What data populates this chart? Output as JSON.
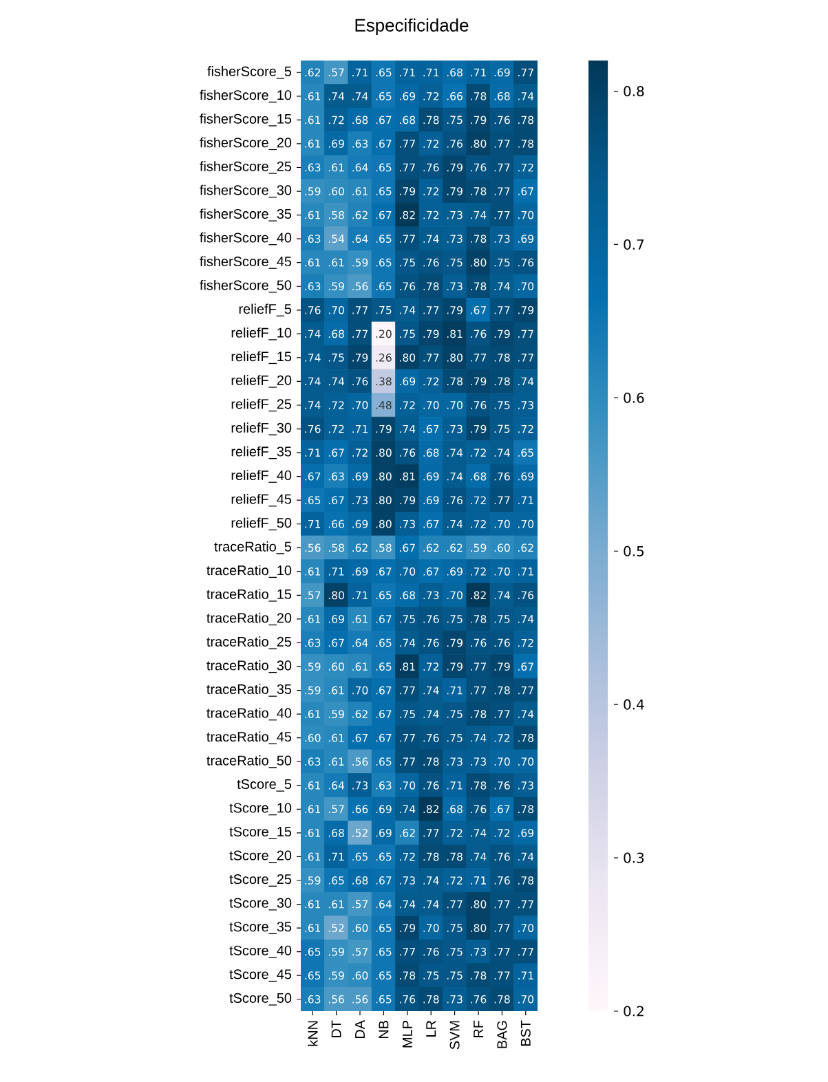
{
  "chart_data": {
    "type": "heatmap",
    "title": "Especificidade",
    "categories": [
      "kNN",
      "DT",
      "DA",
      "NB",
      "MLP",
      "LR",
      "SVM",
      "RF",
      "BAG",
      "BST"
    ],
    "y_categories": [
      "fisherScore_5",
      "fisherScore_10",
      "fisherScore_15",
      "fisherScore_20",
      "fisherScore_25",
      "fisherScore_30",
      "fisherScore_35",
      "fisherScore_40",
      "fisherScore_45",
      "fisherScore_50",
      "reliefF_5",
      "reliefF_10",
      "reliefF_15",
      "reliefF_20",
      "reliefF_25",
      "reliefF_30",
      "reliefF_35",
      "reliefF_40",
      "reliefF_45",
      "reliefF_50",
      "traceRatio_5",
      "traceRatio_10",
      "traceRatio_15",
      "traceRatio_20",
      "traceRatio_25",
      "traceRatio_30",
      "traceRatio_35",
      "traceRatio_40",
      "traceRatio_45",
      "traceRatio_50",
      "tScore_5",
      "tScore_10",
      "tScore_15",
      "tScore_20",
      "tScore_25",
      "tScore_30",
      "tScore_35",
      "tScore_40",
      "tScore_45",
      "tScore_50"
    ],
    "cells": [
      [
        0.62,
        0.57,
        0.71,
        0.65,
        0.71,
        0.71,
        0.68,
        0.71,
        0.69,
        0.77
      ],
      [
        0.61,
        0.74,
        0.74,
        0.65,
        0.69,
        0.72,
        0.66,
        0.78,
        0.68,
        0.74
      ],
      [
        0.61,
        0.72,
        0.68,
        0.67,
        0.68,
        0.78,
        0.75,
        0.79,
        0.76,
        0.78
      ],
      [
        0.61,
        0.69,
        0.63,
        0.67,
        0.77,
        0.72,
        0.76,
        0.8,
        0.77,
        0.78
      ],
      [
        0.63,
        0.61,
        0.64,
        0.65,
        0.77,
        0.76,
        0.79,
        0.76,
        0.77,
        0.72
      ],
      [
        0.59,
        0.6,
        0.61,
        0.65,
        0.79,
        0.72,
        0.79,
        0.78,
        0.77,
        0.67
      ],
      [
        0.61,
        0.58,
        0.62,
        0.67,
        0.82,
        0.72,
        0.73,
        0.74,
        0.77,
        0.7
      ],
      [
        0.63,
        0.54,
        0.64,
        0.65,
        0.77,
        0.74,
        0.73,
        0.78,
        0.73,
        0.69
      ],
      [
        0.61,
        0.61,
        0.59,
        0.65,
        0.75,
        0.76,
        0.75,
        0.8,
        0.75,
        0.76
      ],
      [
        0.63,
        0.59,
        0.56,
        0.65,
        0.76,
        0.78,
        0.73,
        0.78,
        0.74,
        0.7
      ],
      [
        0.76,
        0.7,
        0.77,
        0.75,
        0.74,
        0.77,
        0.79,
        0.67,
        0.77,
        0.79
      ],
      [
        0.74,
        0.68,
        0.77,
        0.2,
        0.75,
        0.79,
        0.81,
        0.76,
        0.79,
        0.77
      ],
      [
        0.74,
        0.75,
        0.79,
        0.26,
        0.8,
        0.77,
        0.8,
        0.77,
        0.78,
        0.77
      ],
      [
        0.74,
        0.74,
        0.76,
        0.38,
        0.69,
        0.72,
        0.78,
        0.79,
        0.78,
        0.74
      ],
      [
        0.74,
        0.72,
        0.7,
        0.48,
        0.72,
        0.7,
        0.7,
        0.76,
        0.75,
        0.73
      ],
      [
        0.76,
        0.72,
        0.71,
        0.79,
        0.74,
        0.67,
        0.73,
        0.79,
        0.75,
        0.72
      ],
      [
        0.71,
        0.67,
        0.72,
        0.8,
        0.76,
        0.68,
        0.74,
        0.72,
        0.74,
        0.65
      ],
      [
        0.67,
        0.63,
        0.69,
        0.8,
        0.81,
        0.69,
        0.74,
        0.68,
        0.76,
        0.69
      ],
      [
        0.65,
        0.67,
        0.73,
        0.8,
        0.79,
        0.69,
        0.76,
        0.72,
        0.77,
        0.71
      ],
      [
        0.71,
        0.66,
        0.69,
        0.8,
        0.73,
        0.67,
        0.74,
        0.72,
        0.7,
        0.7
      ],
      [
        0.56,
        0.58,
        0.62,
        0.58,
        0.67,
        0.62,
        0.62,
        0.59,
        0.6,
        0.62
      ],
      [
        0.61,
        0.71,
        0.69,
        0.67,
        0.7,
        0.67,
        0.69,
        0.72,
        0.7,
        0.71
      ],
      [
        0.57,
        0.8,
        0.71,
        0.65,
        0.68,
        0.73,
        0.7,
        0.82,
        0.74,
        0.76
      ],
      [
        0.61,
        0.69,
        0.61,
        0.67,
        0.75,
        0.76,
        0.75,
        0.78,
        0.75,
        0.74
      ],
      [
        0.63,
        0.67,
        0.64,
        0.65,
        0.74,
        0.76,
        0.79,
        0.76,
        0.76,
        0.72
      ],
      [
        0.59,
        0.6,
        0.61,
        0.65,
        0.81,
        0.72,
        0.79,
        0.77,
        0.79,
        0.67
      ],
      [
        0.59,
        0.61,
        0.7,
        0.67,
        0.77,
        0.74,
        0.71,
        0.77,
        0.78,
        0.77
      ],
      [
        0.61,
        0.59,
        0.62,
        0.67,
        0.75,
        0.74,
        0.75,
        0.78,
        0.77,
        0.74
      ],
      [
        0.6,
        0.61,
        0.67,
        0.67,
        0.77,
        0.76,
        0.75,
        0.74,
        0.72,
        0.78
      ],
      [
        0.63,
        0.61,
        0.56,
        0.65,
        0.77,
        0.78,
        0.73,
        0.73,
        0.7,
        0.7
      ],
      [
        0.61,
        0.64,
        0.73,
        0.63,
        0.7,
        0.76,
        0.71,
        0.78,
        0.76,
        0.73
      ],
      [
        0.61,
        0.57,
        0.66,
        0.69,
        0.74,
        0.82,
        0.68,
        0.76,
        0.67,
        0.78
      ],
      [
        0.61,
        0.68,
        0.52,
        0.69,
        0.62,
        0.77,
        0.72,
        0.74,
        0.72,
        0.69
      ],
      [
        0.61,
        0.71,
        0.65,
        0.65,
        0.72,
        0.78,
        0.78,
        0.74,
        0.76,
        0.74
      ],
      [
        0.59,
        0.65,
        0.68,
        0.67,
        0.73,
        0.74,
        0.72,
        0.71,
        0.76,
        0.78
      ],
      [
        0.61,
        0.61,
        0.57,
        0.64,
        0.74,
        0.74,
        0.77,
        0.8,
        0.77,
        0.77
      ],
      [
        0.61,
        0.52,
        0.6,
        0.65,
        0.79,
        0.7,
        0.75,
        0.8,
        0.77,
        0.7
      ],
      [
        0.65,
        0.59,
        0.57,
        0.65,
        0.77,
        0.76,
        0.75,
        0.73,
        0.77,
        0.77
      ],
      [
        0.65,
        0.59,
        0.6,
        0.65,
        0.78,
        0.75,
        0.75,
        0.78,
        0.77,
        0.71
      ],
      [
        0.63,
        0.56,
        0.56,
        0.65,
        0.76,
        0.78,
        0.73,
        0.76,
        0.78,
        0.7
      ]
    ],
    "cell_labels": [
      [
        ".62",
        ".57",
        ".71",
        ".65",
        ".71",
        ".71",
        ".68",
        ".71",
        ".69",
        ".77"
      ],
      [
        ".61",
        ".74",
        ".74",
        ".65",
        ".69",
        ".72",
        ".66",
        ".78",
        ".68",
        ".74"
      ],
      [
        ".61",
        ".72",
        ".68",
        ".67",
        ".68",
        ".78",
        ".75",
        ".79",
        ".76",
        ".78"
      ],
      [
        ".61",
        ".69",
        ".63",
        ".67",
        ".77",
        ".72",
        ".76",
        ".80",
        ".77",
        ".78"
      ],
      [
        ".63",
        ".61",
        ".64",
        ".65",
        ".77",
        ".76",
        ".79",
        ".76",
        ".77",
        ".72"
      ],
      [
        ".59",
        ".60",
        ".61",
        ".65",
        ".79",
        ".72",
        ".79",
        ".78",
        ".77",
        ".67"
      ],
      [
        ".61",
        ".58",
        ".62",
        ".67",
        ".82",
        ".72",
        ".73",
        ".74",
        ".77",
        ".70"
      ],
      [
        ".63",
        ".54",
        ".64",
        ".65",
        ".77",
        ".74",
        ".73",
        ".78",
        ".73",
        ".69"
      ],
      [
        ".61",
        ".61",
        ".59",
        ".65",
        ".75",
        ".76",
        ".75",
        ".80",
        ".75",
        ".76"
      ],
      [
        ".63",
        ".59",
        ".56",
        ".65",
        ".76",
        ".78",
        ".73",
        ".78",
        ".74",
        ".70"
      ],
      [
        ".76",
        ".70",
        ".77",
        ".75",
        ".74",
        ".77",
        ".79",
        ".67",
        ".77",
        ".79"
      ],
      [
        ".74",
        ".68",
        ".77",
        ".20",
        ".75",
        ".79",
        ".81",
        ".76",
        ".79",
        ".77"
      ],
      [
        ".74",
        ".75",
        ".79",
        ".26",
        ".80",
        ".77",
        ".80",
        ".77",
        ".78",
        ".77"
      ],
      [
        ".74",
        ".74",
        ".76",
        ".38",
        ".69",
        ".72",
        ".78",
        ".79",
        ".78",
        ".74"
      ],
      [
        ".74",
        ".72",
        ".70",
        ".48",
        ".72",
        ".70",
        ".70",
        ".76",
        ".75",
        ".73"
      ],
      [
        ".76",
        ".72",
        ".71",
        ".79",
        ".74",
        ".67",
        ".73",
        ".79",
        ".75",
        ".72"
      ],
      [
        ".71",
        ".67",
        ".72",
        ".80",
        ".76",
        ".68",
        ".74",
        ".72",
        ".74",
        ".65"
      ],
      [
        ".67",
        ".63",
        ".69",
        ".80",
        ".81",
        ".69",
        ".74",
        ".68",
        ".76",
        ".69"
      ],
      [
        ".65",
        ".67",
        ".73",
        ".80",
        ".79",
        ".69",
        ".76",
        ".72",
        ".77",
        ".71"
      ],
      [
        ".71",
        ".66",
        ".69",
        ".80",
        ".73",
        ".67",
        ".74",
        ".72",
        ".70",
        ".70"
      ],
      [
        ".56",
        ".58",
        ".62",
        ".58",
        ".67",
        ".62",
        ".62",
        ".59",
        ".60",
        ".62"
      ],
      [
        ".61",
        ".71",
        ".69",
        ".67",
        ".70",
        ".67",
        ".69",
        ".72",
        ".70",
        ".71"
      ],
      [
        ".57",
        ".80",
        ".71",
        ".65",
        ".68",
        ".73",
        ".70",
        ".82",
        ".74",
        ".76"
      ],
      [
        ".61",
        ".69",
        ".61",
        ".67",
        ".75",
        ".76",
        ".75",
        ".78",
        ".75",
        ".74"
      ],
      [
        ".63",
        ".67",
        ".64",
        ".65",
        ".74",
        ".76",
        ".79",
        ".76",
        ".76",
        ".72"
      ],
      [
        ".59",
        ".60",
        ".61",
        ".65",
        ".81",
        ".72",
        ".79",
        ".77",
        ".79",
        ".67"
      ],
      [
        ".59",
        ".61",
        ".70",
        ".67",
        ".77",
        ".74",
        ".71",
        ".77",
        ".78",
        ".77"
      ],
      [
        ".61",
        ".59",
        ".62",
        ".67",
        ".75",
        ".74",
        ".75",
        ".78",
        ".77",
        ".74"
      ],
      [
        ".60",
        ".61",
        ".67",
        ".67",
        ".77",
        ".76",
        ".75",
        ".74",
        ".72",
        ".78"
      ],
      [
        ".63",
        ".61",
        ".56",
        ".65",
        ".77",
        ".78",
        ".73",
        ".73",
        ".70",
        ".70"
      ],
      [
        ".61",
        ".64",
        ".73",
        ".63",
        ".70",
        ".76",
        ".71",
        ".78",
        ".76",
        ".73"
      ],
      [
        ".61",
        ".57",
        ".66",
        ".69",
        ".74",
        ".82",
        ".68",
        ".76",
        ".67",
        ".78"
      ],
      [
        ".61",
        ".68",
        ".52",
        ".69",
        ".62",
        ".77",
        ".72",
        ".74",
        ".72",
        ".69"
      ],
      [
        ".61",
        ".71",
        ".65",
        ".65",
        ".72",
        ".78",
        ".78",
        ".74",
        ".76",
        ".74"
      ],
      [
        ".59",
        ".65",
        ".68",
        ".67",
        ".73",
        ".74",
        ".72",
        ".71",
        ".76",
        ".78"
      ],
      [
        ".61",
        ".61",
        ".57",
        ".64",
        ".74",
        ".74",
        ".77",
        ".80",
        ".77",
        ".77"
      ],
      [
        ".61",
        ".52",
        ".60",
        ".65",
        ".79",
        ".70",
        ".75",
        ".80",
        ".77",
        ".70"
      ],
      [
        ".65",
        ".59",
        ".57",
        ".65",
        ".77",
        ".76",
        ".75",
        ".73",
        ".77",
        ".77"
      ],
      [
        ".65",
        ".59",
        ".60",
        ".65",
        ".78",
        ".75",
        ".75",
        ".78",
        ".77",
        ".71"
      ],
      [
        ".63",
        ".56",
        ".56",
        ".65",
        ".76",
        ".78",
        ".73",
        ".76",
        ".78",
        ".70"
      ]
    ],
    "clim": [
      0.2,
      0.82
    ],
    "cticks": [
      0.2,
      0.3,
      0.4,
      0.5,
      0.6,
      0.7,
      0.8
    ]
  }
}
